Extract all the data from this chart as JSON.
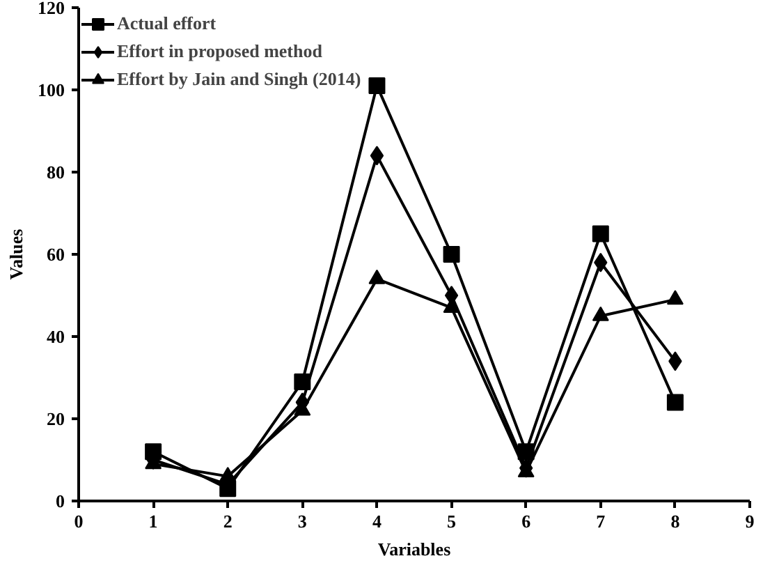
{
  "chart_data": {
    "type": "line",
    "xlabel": "Variables",
    "ylabel": "Values",
    "x": [
      1,
      2,
      3,
      4,
      5,
      6,
      7,
      8
    ],
    "series": [
      {
        "name": "Actual effort",
        "color": "#000000",
        "marker": "square",
        "values": [
          12,
          3,
          29,
          101,
          60,
          12,
          65,
          24
        ]
      },
      {
        "name": "Effort in proposed method",
        "color": "#000000",
        "marker": "diamond",
        "values": [
          10,
          4,
          24,
          84,
          50,
          8,
          58,
          34
        ]
      },
      {
        "name": "Effort by Jain and Singh (2014)",
        "color": "#000000",
        "marker": "triangle",
        "values": [
          9,
          6,
          22,
          54,
          47,
          7,
          45,
          49
        ]
      }
    ],
    "xlim": [
      0,
      9
    ],
    "xticks": [
      0,
      1,
      2,
      3,
      4,
      5,
      6,
      7,
      8,
      9
    ],
    "ylim": [
      0,
      120
    ],
    "yticks": [
      0,
      20,
      40,
      60,
      80,
      100,
      120
    ],
    "grid": false,
    "legend": "top left",
    "line_style": "solid"
  }
}
